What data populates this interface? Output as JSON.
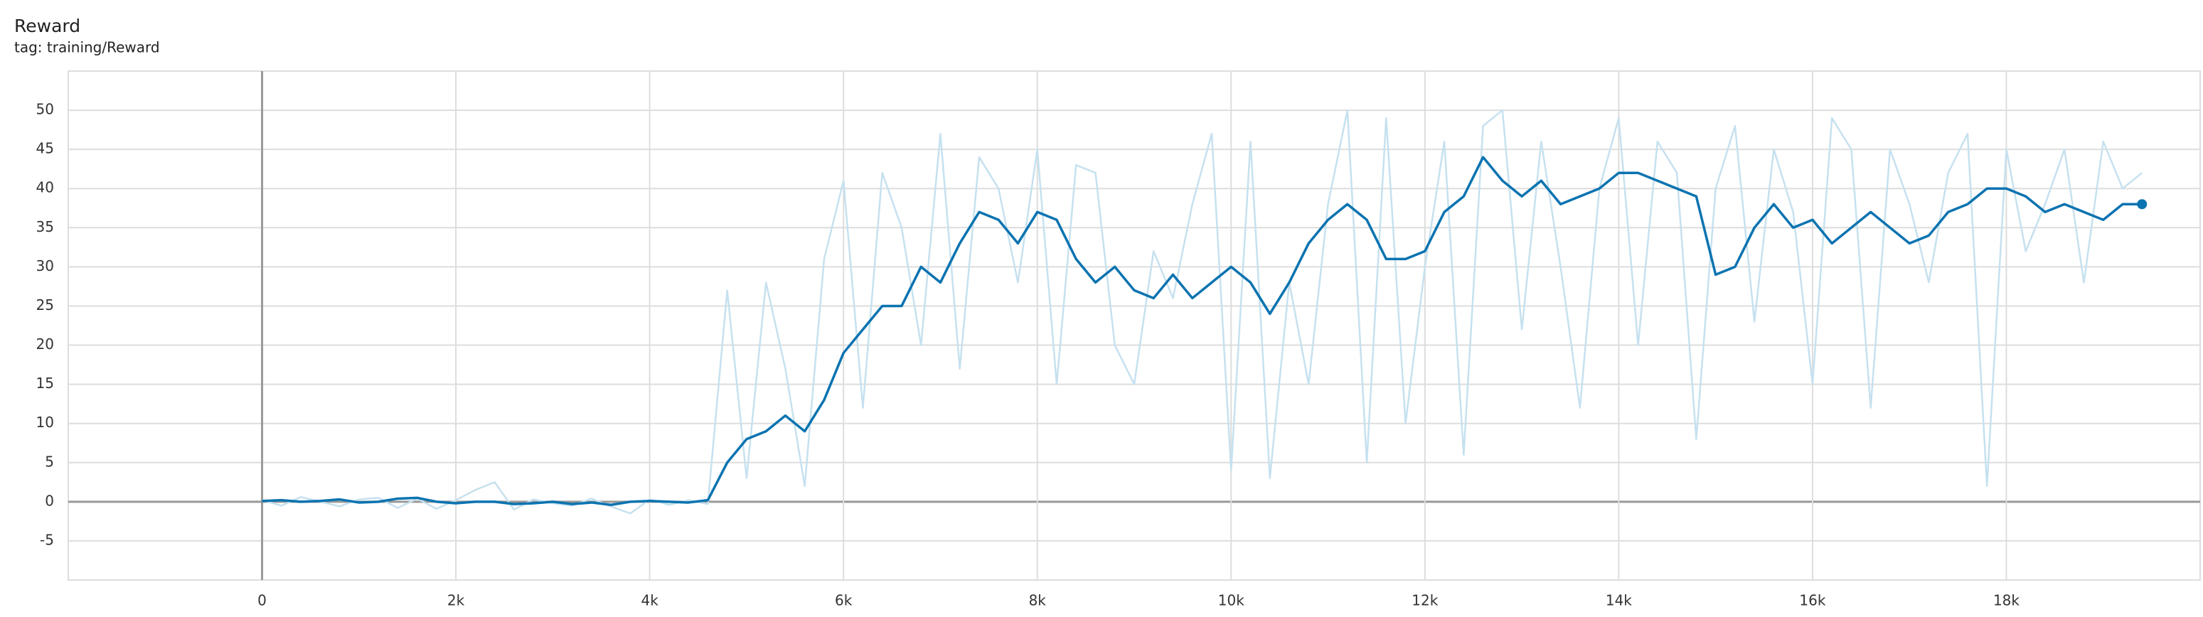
{
  "chart_data": {
    "type": "line",
    "title": "Reward",
    "subtitle": "tag: training/Reward",
    "x": [
      0,
      200,
      400,
      600,
      800,
      1000,
      1200,
      1400,
      1600,
      1800,
      2000,
      2200,
      2400,
      2600,
      2800,
      3000,
      3200,
      3400,
      3600,
      3800,
      4000,
      4200,
      4400,
      4600,
      4800,
      5000,
      5200,
      5400,
      5600,
      5800,
      6000,
      6200,
      6400,
      6600,
      6800,
      7000,
      7200,
      7400,
      7600,
      7800,
      8000,
      8200,
      8400,
      8600,
      8800,
      9000,
      9200,
      9400,
      9600,
      9800,
      10000,
      10200,
      10400,
      10600,
      10800,
      11000,
      11200,
      11400,
      11600,
      11800,
      12000,
      12200,
      12400,
      12600,
      12800,
      13000,
      13200,
      13400,
      13600,
      13800,
      14000,
      14200,
      14400,
      14600,
      14800,
      15000,
      15200,
      15400,
      15600,
      15800,
      16000,
      16200,
      16400,
      16600,
      16800,
      17000,
      17200,
      17400,
      17600,
      17800,
      18000,
      18200,
      18400,
      18600,
      18800,
      19000,
      19200,
      19400
    ],
    "series": [
      {
        "color": "#c6e1ef",
        "values": [
          0.2,
          -0.5,
          0.6,
          0,
          -0.6,
          0.3,
          0.5,
          -0.8,
          0.4,
          -0.9,
          0.2,
          1.5,
          2.5,
          -1,
          0.3,
          -0.2,
          -0.5,
          0.4,
          -0.6,
          -1.5,
          0.3,
          -0.4,
          0.2,
          -0.3,
          27,
          3,
          28,
          17,
          2,
          31,
          41,
          12,
          42,
          35,
          20,
          47,
          17,
          44,
          40,
          28,
          45,
          15,
          43,
          42,
          20,
          15,
          32,
          26,
          38,
          47,
          4,
          46,
          3,
          28,
          15,
          38,
          50,
          5,
          49,
          10,
          30,
          46,
          6,
          48,
          50,
          22,
          46,
          30,
          12,
          40,
          49,
          20,
          46,
          42,
          8,
          40,
          48,
          23,
          45,
          37,
          15,
          49,
          45,
          12,
          45,
          38,
          28,
          42,
          47,
          2,
          45,
          32,
          38,
          45,
          28,
          46,
          40,
          42
        ]
      },
      {
        "color": "#0b73b0",
        "values": [
          0.1,
          0.2,
          0,
          0.1,
          0.3,
          -0.1,
          0,
          0.4,
          0.5,
          0,
          -0.2,
          0,
          0,
          -0.3,
          -0.2,
          0,
          -0.3,
          -0.1,
          -0.4,
          0,
          0.1,
          0,
          -0.1,
          0.2,
          5,
          8,
          9,
          11,
          9,
          13,
          19,
          22,
          25,
          25,
          30,
          28,
          33,
          37,
          36,
          33,
          37,
          36,
          31,
          28,
          30,
          27,
          26,
          29,
          26,
          28,
          30,
          28,
          24,
          28,
          33,
          36,
          38,
          36,
          31,
          31,
          32,
          37,
          39,
          44,
          41,
          39,
          41,
          38,
          39,
          40,
          42,
          42,
          41,
          40,
          39,
          29,
          30,
          35,
          38,
          35,
          36,
          33,
          35,
          37,
          35,
          33,
          34,
          37,
          38,
          40,
          40,
          39,
          37,
          38,
          37,
          36,
          38,
          38
        ]
      }
    ],
    "xlim": [
      -2000,
      20000
    ],
    "ylim": [
      -10,
      55
    ],
    "xticks": [
      0,
      {
        "value": 2000,
        "label": "2k"
      },
      {
        "value": 4000,
        "label": "4k"
      },
      {
        "value": 6000,
        "label": "6k"
      },
      {
        "value": 8000,
        "label": "8k"
      },
      {
        "value": 10000,
        "label": "10k"
      },
      {
        "value": 12000,
        "label": "12k"
      },
      {
        "value": 14000,
        "label": "14k"
      },
      {
        "value": 16000,
        "label": "16k"
      },
      {
        "value": 18000,
        "label": "18k"
      }
    ],
    "yticks": [
      -5,
      0,
      5,
      10,
      15,
      20,
      25,
      30,
      35,
      40,
      45,
      50
    ],
    "grid": true
  }
}
